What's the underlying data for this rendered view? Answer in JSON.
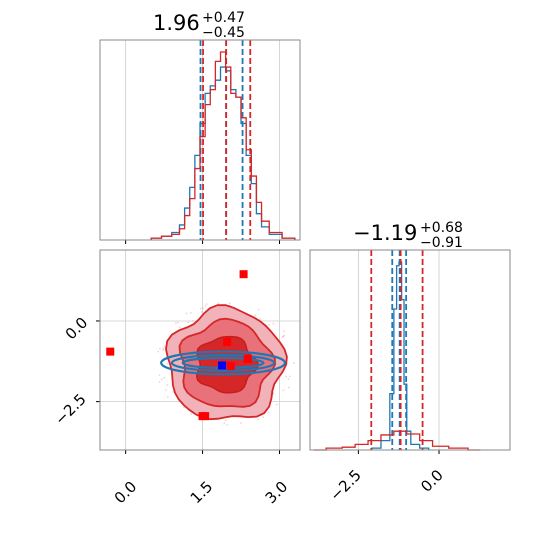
{
  "chart_data": [
    {
      "panel": "x-marginal",
      "type": "histogram",
      "title_value": "1.96",
      "title_plus": "+0.47",
      "title_minus": "−0.45",
      "xlim": [
        -0.5,
        3.4
      ],
      "grid": true,
      "series": [
        {
          "color": "#1f77b4",
          "quantiles": [
            1.46,
            1.96,
            2.28
          ],
          "x": [
            0.6,
            0.8,
            1.0,
            1.1,
            1.2,
            1.3,
            1.4,
            1.5,
            1.6,
            1.7,
            1.8,
            1.9,
            2.0,
            2.1,
            2.2,
            2.3,
            2.4,
            2.5,
            2.6,
            2.7,
            2.9,
            3.2
          ],
          "density": [
            0.01,
            0.02,
            0.04,
            0.08,
            0.17,
            0.28,
            0.45,
            0.62,
            0.78,
            0.82,
            0.85,
            0.92,
            0.9,
            0.8,
            0.76,
            0.62,
            0.45,
            0.3,
            0.14,
            0.07,
            0.03,
            0.01
          ]
        },
        {
          "color": "#d62728",
          "quantiles": [
            1.51,
            1.96,
            2.43
          ],
          "x": [
            0.6,
            0.8,
            1.0,
            1.1,
            1.2,
            1.3,
            1.4,
            1.5,
            1.6,
            1.7,
            1.8,
            1.9,
            2.0,
            2.1,
            2.2,
            2.3,
            2.4,
            2.5,
            2.6,
            2.7,
            2.9,
            3.2
          ],
          "density": [
            0.01,
            0.02,
            0.03,
            0.06,
            0.13,
            0.22,
            0.38,
            0.55,
            0.72,
            0.8,
            0.95,
            1.0,
            0.92,
            0.78,
            0.76,
            0.65,
            0.48,
            0.34,
            0.2,
            0.1,
            0.04,
            0.01
          ]
        }
      ]
    },
    {
      "panel": "y-marginal",
      "type": "histogram",
      "title_value": "−1.19",
      "title_plus": "+0.68",
      "title_minus": "−0.91",
      "xlim": [
        -4.0,
        2.2
      ],
      "xticks": [
        "−2.5",
        "0.0"
      ],
      "grid": true,
      "series": [
        {
          "color": "#1f77b4",
          "quantiles": [
            -1.45,
            -1.22,
            -1.02
          ],
          "x": [
            -2.0,
            -1.6,
            -1.45,
            -1.35,
            -1.28,
            -1.2,
            -1.12,
            -1.05,
            -0.95,
            -0.8,
            -0.4
          ],
          "density": [
            0.01,
            0.05,
            0.3,
            0.75,
            0.98,
            1.0,
            0.8,
            0.35,
            0.1,
            0.03,
            0.01
          ]
        },
        {
          "color": "#d62728",
          "quantiles": [
            -2.1,
            -1.19,
            -0.51
          ],
          "x": [
            -3.8,
            -3.2,
            -2.8,
            -2.4,
            -2.0,
            -1.6,
            -1.2,
            -0.8,
            -0.4,
            0.0,
            0.6,
            1.2
          ],
          "density": [
            0.0,
            0.01,
            0.015,
            0.03,
            0.05,
            0.08,
            0.1,
            0.085,
            0.05,
            0.02,
            0.01,
            0.0
          ]
        }
      ]
    },
    {
      "panel": "joint",
      "type": "scatter",
      "xlim": [
        -0.5,
        3.4
      ],
      "ylim": [
        -4.0,
        2.2
      ],
      "xticks": [
        "0.0",
        "1.5",
        "3.0"
      ],
      "yticks": [
        "0.0",
        "−2.5"
      ],
      "grid": true,
      "red_contour_center": [
        1.95,
        -1.35
      ],
      "blue_contour_center": [
        1.9,
        -1.3
      ],
      "markers": [
        {
          "x": 2.3,
          "y": 1.45,
          "color": "#ff0000"
        },
        {
          "x": -0.3,
          "y": -0.95,
          "color": "#ff0000"
        },
        {
          "x": 1.98,
          "y": -0.65,
          "color": "#ff0000"
        },
        {
          "x": 2.38,
          "y": -1.18,
          "color": "#ff0000"
        },
        {
          "x": 2.05,
          "y": -1.4,
          "color": "#ff0000"
        },
        {
          "x": 1.5,
          "y": -2.95,
          "color": "#ff0000"
        },
        {
          "x": 1.55,
          "y": -2.95,
          "color": "#ff0000"
        },
        {
          "x": 1.88,
          "y": -1.38,
          "color": "#0000ff"
        }
      ]
    }
  ]
}
